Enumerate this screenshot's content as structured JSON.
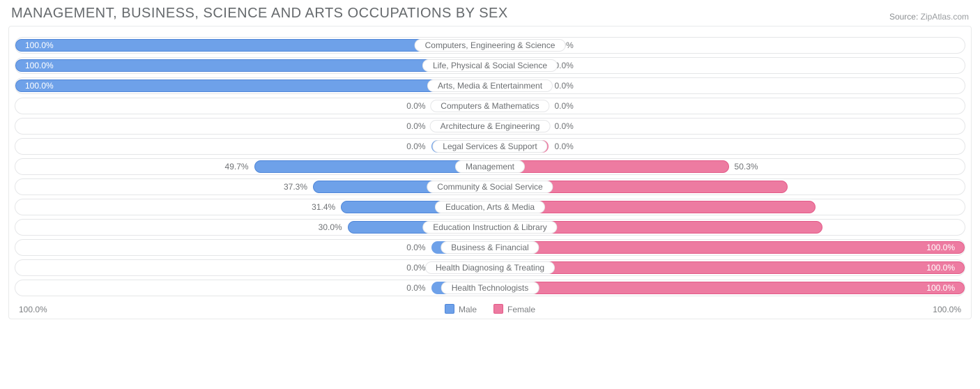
{
  "header": {
    "title": "MANAGEMENT, BUSINESS, SCIENCE AND ARTS OCCUPATIONS BY SEX",
    "source_label": "Source:",
    "source_value": "ZipAtlas.com"
  },
  "chart": {
    "type": "diverging-bar",
    "half_width_pct": 50,
    "stub_width_pct": 6.2,
    "colors": {
      "male_fill": "#6ea1e9",
      "male_border": "#4f86d8",
      "female_fill": "#ed7ba1",
      "female_border": "#e35a88",
      "row_border": "#e5e6e8",
      "text_muted": "#7c7f82",
      "text_inbar": "#ffffff",
      "background": "#ffffff"
    },
    "axis": {
      "left": "100.0%",
      "right": "100.0%"
    },
    "legend": [
      {
        "label": "Male",
        "fill": "#6ea1e9",
        "border": "#4f86d8"
      },
      {
        "label": "Female",
        "fill": "#ed7ba1",
        "border": "#e35a88"
      }
    ],
    "rows": [
      {
        "label": "Computers, Engineering & Science",
        "male": 100.0,
        "female": 0.0,
        "male_label": "100.0%",
        "female_label": "0.0%"
      },
      {
        "label": "Life, Physical & Social Science",
        "male": 100.0,
        "female": 0.0,
        "male_label": "100.0%",
        "female_label": "0.0%"
      },
      {
        "label": "Arts, Media & Entertainment",
        "male": 100.0,
        "female": 0.0,
        "male_label": "100.0%",
        "female_label": "0.0%"
      },
      {
        "label": "Computers & Mathematics",
        "male": 0.0,
        "female": 0.0,
        "male_label": "0.0%",
        "female_label": "0.0%"
      },
      {
        "label": "Architecture & Engineering",
        "male": 0.0,
        "female": 0.0,
        "male_label": "0.0%",
        "female_label": "0.0%"
      },
      {
        "label": "Legal Services & Support",
        "male": 0.0,
        "female": 0.0,
        "male_label": "0.0%",
        "female_label": "0.0%"
      },
      {
        "label": "Management",
        "male": 49.7,
        "female": 50.3,
        "male_label": "49.7%",
        "female_label": "50.3%"
      },
      {
        "label": "Community & Social Service",
        "male": 37.3,
        "female": 62.7,
        "male_label": "37.3%",
        "female_label": "62.7%"
      },
      {
        "label": "Education, Arts & Media",
        "male": 31.4,
        "female": 68.6,
        "male_label": "31.4%",
        "female_label": "68.6%"
      },
      {
        "label": "Education Instruction & Library",
        "male": 30.0,
        "female": 70.0,
        "male_label": "30.0%",
        "female_label": "70.0%"
      },
      {
        "label": "Business & Financial",
        "male": 0.0,
        "female": 100.0,
        "male_label": "0.0%",
        "female_label": "100.0%"
      },
      {
        "label": "Health Diagnosing & Treating",
        "male": 0.0,
        "female": 100.0,
        "male_label": "0.0%",
        "female_label": "100.0%"
      },
      {
        "label": "Health Technologists",
        "male": 0.0,
        "female": 100.0,
        "male_label": "0.0%",
        "female_label": "100.0%"
      }
    ]
  }
}
